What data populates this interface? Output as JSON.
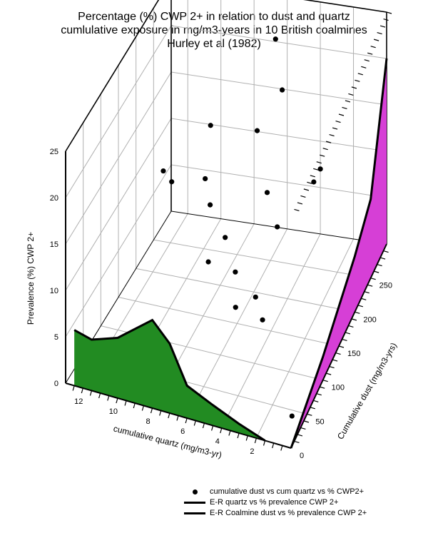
{
  "title_lines": [
    "Percentage (%) CWP 2+ in relation to dust and quartz",
    "cumlulative exposure in mg/m3-years in 10 British coalmines",
    "Hurley et al (1982)"
  ],
  "legend": {
    "items": [
      {
        "label": "cumulative dust vs cum quartz vs % CWP2+",
        "symbol": "dot"
      },
      {
        "label": "E-R quartz vs % prevalence CWP 2+",
        "symbol": "line"
      },
      {
        "label": "E-R Coalmine dust vs % prevalence CWP 2+",
        "symbol": "line"
      }
    ]
  },
  "colors": {
    "quartz_fill": "#228B22",
    "dust_fill": "#D63FD6",
    "points": "#000000",
    "grid": "#b0b0b0"
  },
  "chart_data": {
    "type": "scatter",
    "projection": "3d",
    "zlabel": "Prevalence (%) CWP 2+",
    "xlabel": "cumulative quartz (mg/m3-yr)",
    "ylabel": "Cumulative dust (mg/m3-yrs)",
    "xlim": [
      0,
      13
    ],
    "ylim": [
      0,
      300
    ],
    "zlim": [
      0,
      25
    ],
    "x_ticks": [
      "2",
      "4",
      "6",
      "8",
      "10",
      "12"
    ],
    "y_ticks": [
      "0",
      "50",
      "100",
      "150",
      "200",
      "250"
    ],
    "z_ticks": [
      "0",
      "5",
      "10",
      "15",
      "20",
      "25"
    ],
    "grid": true,
    "legend_position": "bottom",
    "scatter_points": [
      {
        "x": 0.5,
        "y": 30,
        "z": 1
      },
      {
        "x": 5.5,
        "y": 120,
        "z": 4
      },
      {
        "x": 4.5,
        "y": 150,
        "z": 1
      },
      {
        "x": 5.5,
        "y": 180,
        "z": 1
      },
      {
        "x": 6.5,
        "y": 170,
        "z": 4
      },
      {
        "x": 5.0,
        "y": 220,
        "z": 6
      },
      {
        "x": 7.5,
        "y": 190,
        "z": 6
      },
      {
        "x": 8.5,
        "y": 190,
        "z": 3
      },
      {
        "x": 9.0,
        "y": 220,
        "z": 7
      },
      {
        "x": 9.5,
        "y": 230,
        "z": 9
      },
      {
        "x": 6.0,
        "y": 240,
        "z": 8
      },
      {
        "x": 11.5,
        "y": 230,
        "z": 8
      },
      {
        "x": 12.0,
        "y": 230,
        "z": 9
      },
      {
        "x": 4.0,
        "y": 280,
        "z": 7
      },
      {
        "x": 7.0,
        "y": 260,
        "z": 13
      },
      {
        "x": 10.0,
        "y": 270,
        "z": 12
      },
      {
        "x": 6.0,
        "y": 285,
        "z": 16
      },
      {
        "x": 6.5,
        "y": 290,
        "z": 21
      },
      {
        "x": 9.5,
        "y": 300,
        "z": 24
      },
      {
        "x": 4.0,
        "y": 300,
        "z": 7
      }
    ],
    "series": [
      {
        "name": "E-R quartz vs % prevalence CWP 2+",
        "plane_y": 0,
        "x": [
          1.5,
          3.0,
          4.5,
          6.0,
          7.0,
          8.0,
          10.0,
          11.5,
          12.5
        ],
        "z": [
          0,
          1.0,
          2.2,
          3.5,
          7.5,
          9.5,
          6.5,
          5.5,
          6.0
        ]
      },
      {
        "name": "E-R Coalmine dust vs % prevalence CWP 2+",
        "plane_x": 0,
        "y": [
          0,
          100,
          200,
          250,
          300
        ],
        "z": [
          0,
          2.5,
          6.0,
          8.5,
          20.0
        ]
      }
    ]
  }
}
